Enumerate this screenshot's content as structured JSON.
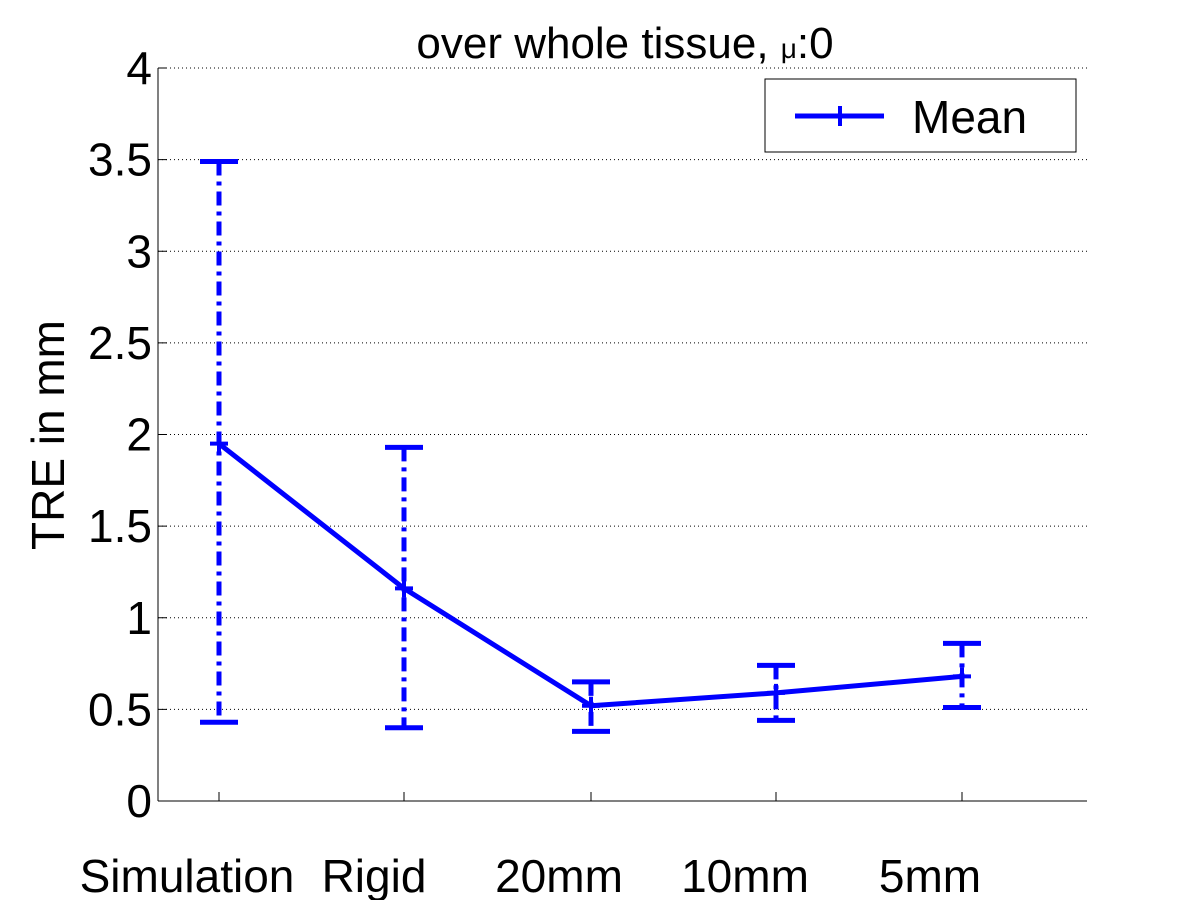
{
  "chart_data": {
    "type": "line",
    "title": "over whole tissue, ",
    "title_symbol": "μ",
    "title_suffix": ":0",
    "xlabel": "",
    "ylabel": "TRE in mm",
    "categories": [
      "Simulation",
      "Rigid",
      "20mm",
      "10mm",
      "5mm"
    ],
    "ylim": [
      0,
      4
    ],
    "yticks": [
      0,
      0.5,
      1,
      1.5,
      2,
      2.5,
      3,
      3.5,
      4
    ],
    "ytick_labels": [
      "0",
      "0.5",
      "1",
      "1.5",
      "2",
      "2.5",
      "3",
      "3.5",
      "4"
    ],
    "grid": "horizontal dotted",
    "legend_position": "top-right",
    "series": [
      {
        "name": "Mean",
        "color": "#0000ff",
        "values": [
          1.95,
          1.16,
          0.52,
          0.59,
          0.68
        ],
        "error_low": [
          0.43,
          0.4,
          0.38,
          0.44,
          0.51
        ],
        "error_high": [
          3.49,
          1.93,
          0.65,
          0.74,
          0.86
        ]
      }
    ]
  }
}
